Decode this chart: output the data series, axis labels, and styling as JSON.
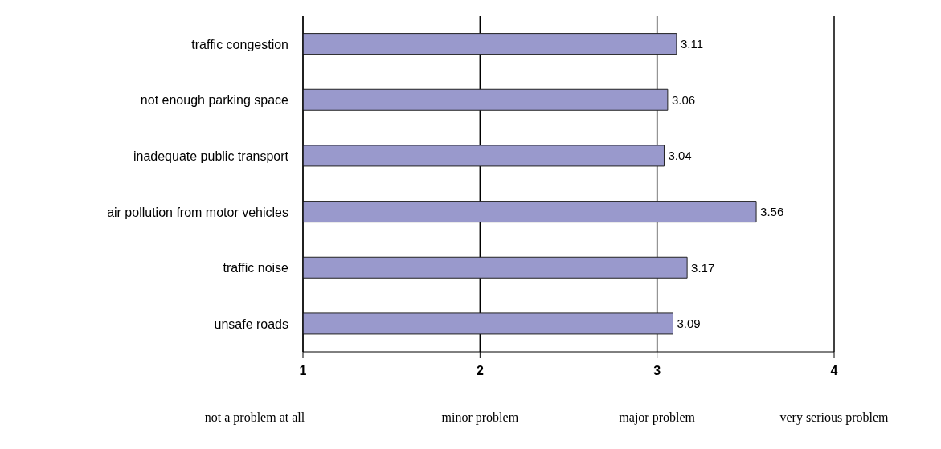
{
  "chart_data": {
    "type": "bar",
    "orientation": "horizontal",
    "categories": [
      "traffic congestion",
      "not enough parking space",
      "inadequate public transport",
      "air pollution from motor vehicles",
      "traffic noise",
      "unsafe roads"
    ],
    "values": [
      3.11,
      3.06,
      3.04,
      3.56,
      3.17,
      3.09
    ],
    "color": "#9999cc",
    "xlim": [
      1,
      4
    ],
    "xticks": [
      1,
      2,
      3,
      4
    ],
    "grid": "x",
    "data_labels": true,
    "annotations": [
      "not a problem at all",
      "minor problem",
      "major problem",
      "very serious problem"
    ]
  }
}
